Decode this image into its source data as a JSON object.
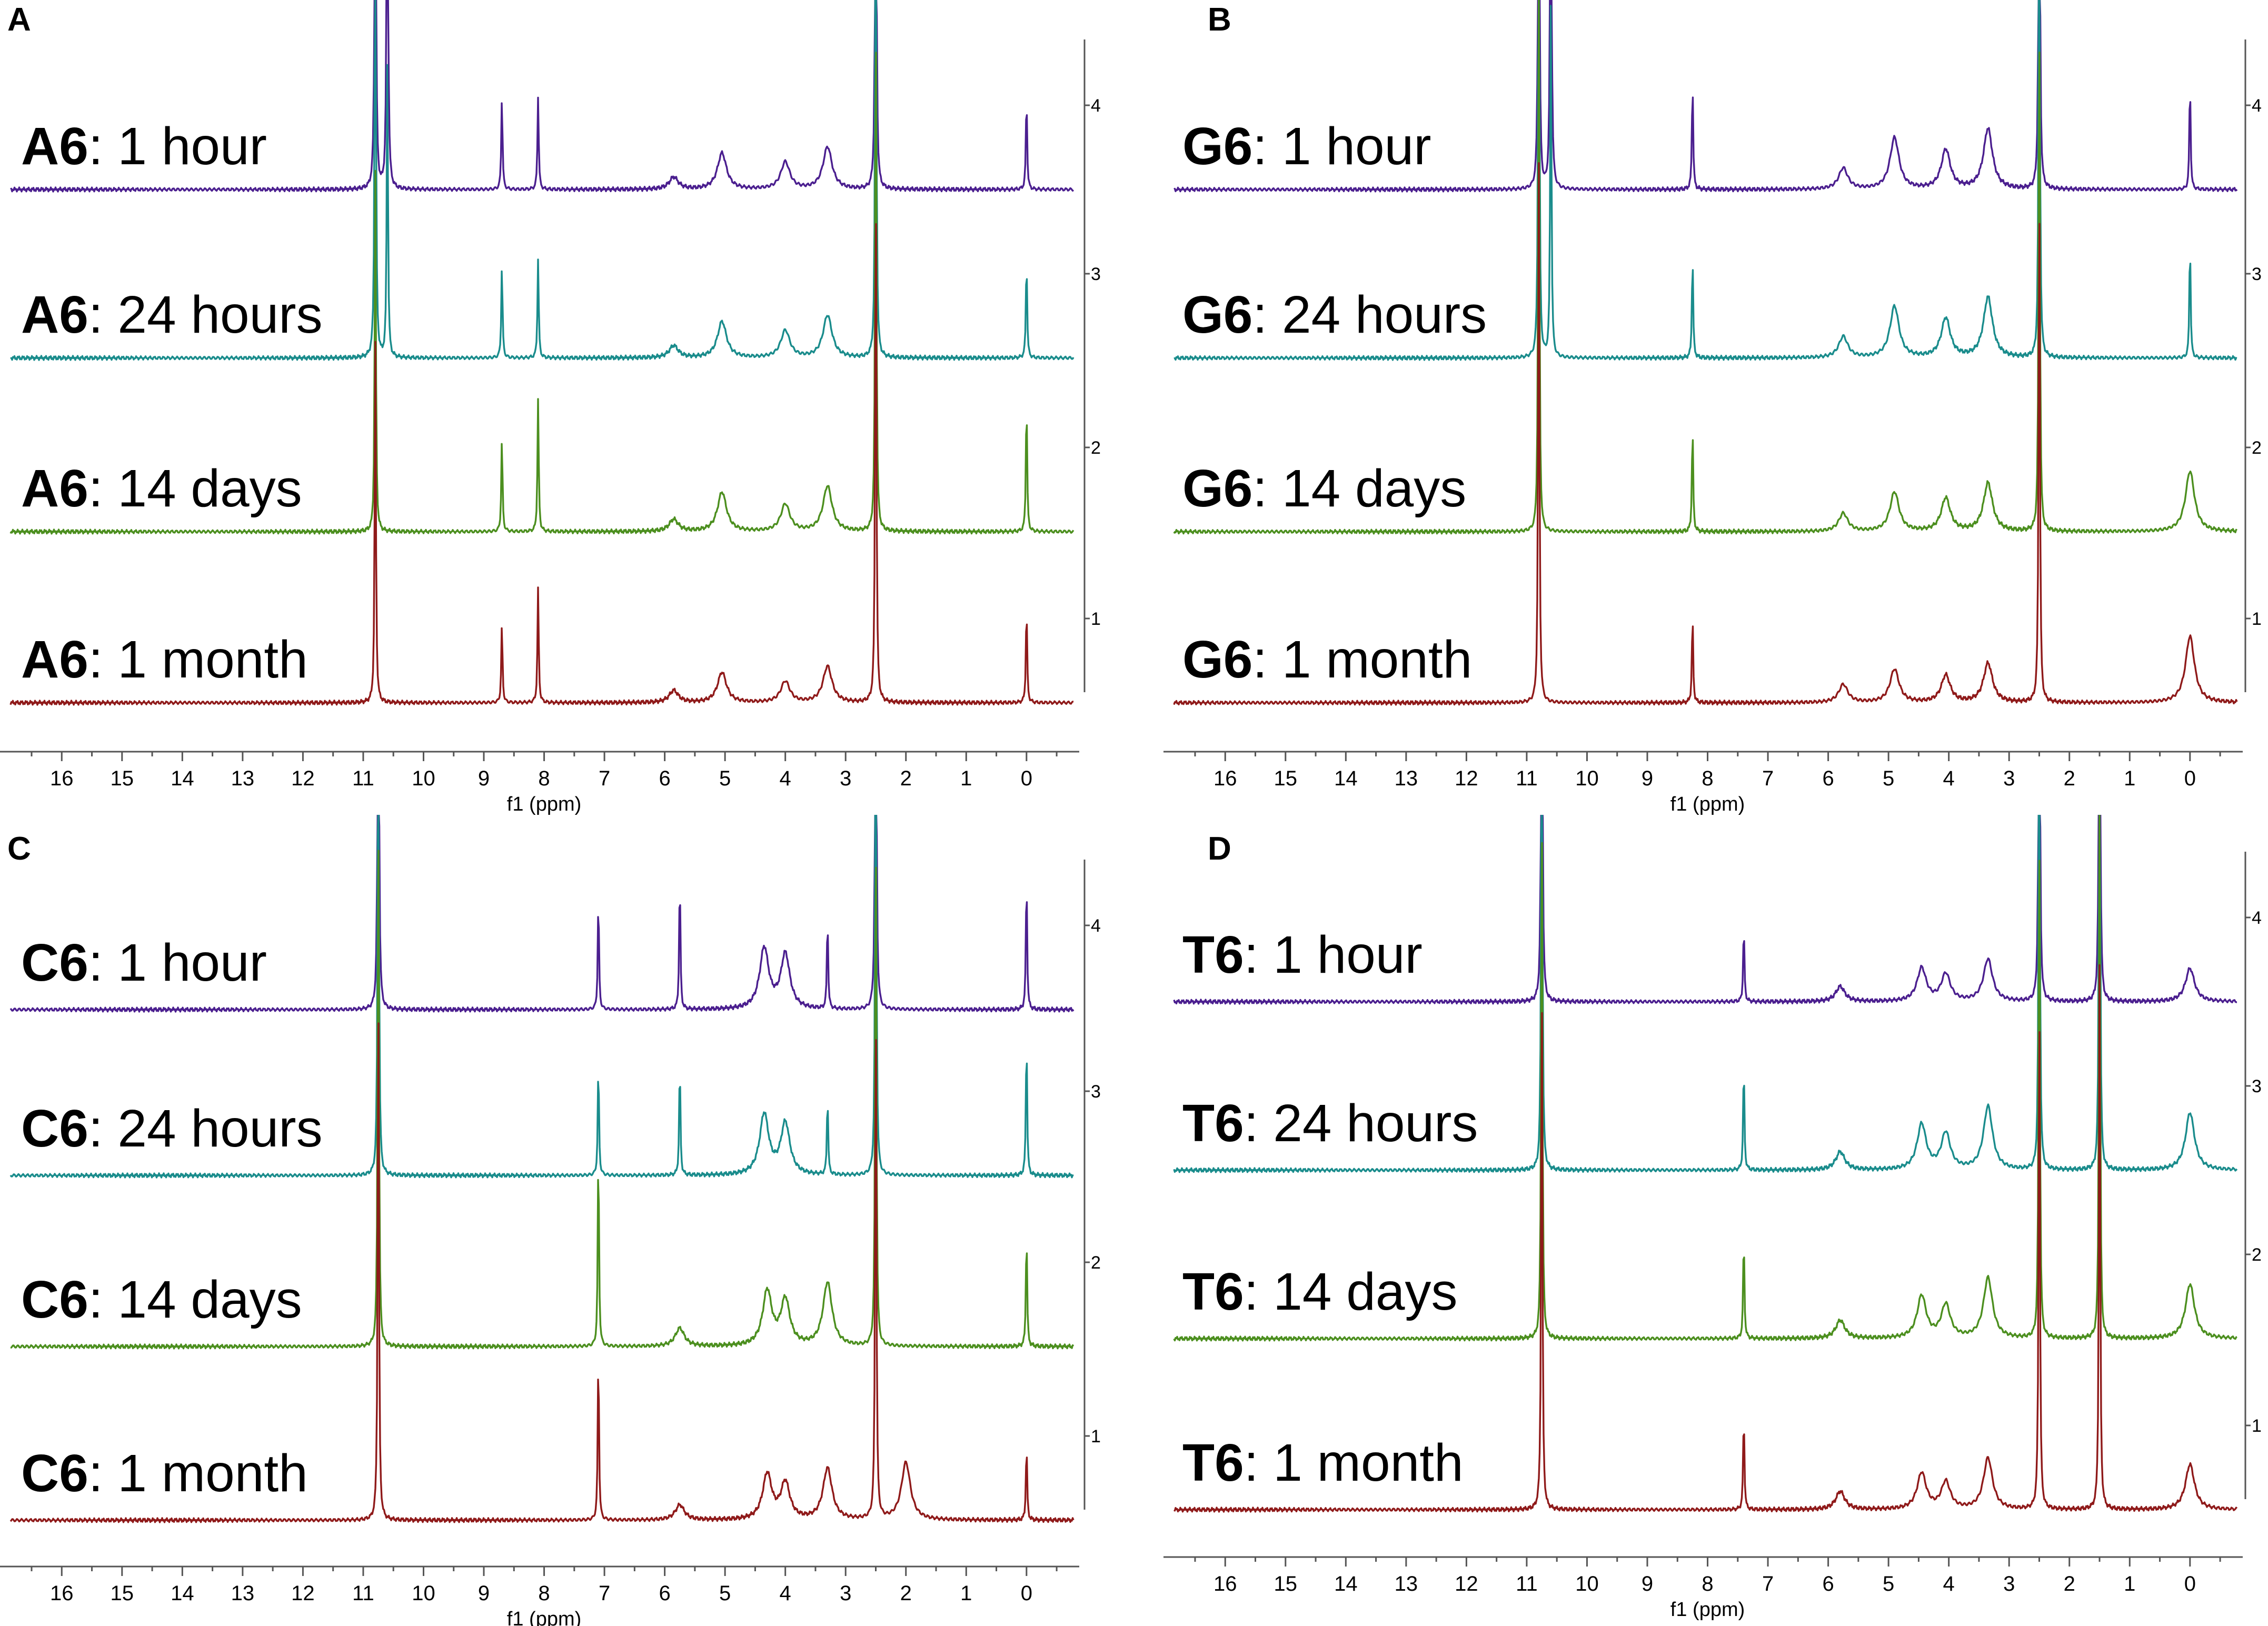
{
  "chart_data": [
    {
      "type": "line",
      "panel": "A",
      "compound": "A6",
      "xlabel": "f1 (ppm)",
      "xlim": [
        16.5,
        -0.7
      ],
      "x_ticks": [
        16,
        15,
        14,
        13,
        12,
        11,
        10,
        9,
        8,
        7,
        6,
        5,
        4,
        3,
        2,
        1,
        0
      ],
      "intensity_ticks": [
        1,
        2,
        3,
        4
      ],
      "series": [
        {
          "label_bold": "A6",
          "label_rest": ": 1 hour",
          "color": "#4b1f8f",
          "peaks": [
            {
              "ppm": 10.8,
              "h": 9
            },
            {
              "ppm": 10.6,
              "h": 9
            },
            {
              "ppm": 8.7,
              "h": 1.55
            },
            {
              "ppm": 8.1,
              "h": 1.55
            },
            {
              "ppm": 5.85,
              "h": 0.2
            },
            {
              "ppm": 5.05,
              "h": 0.6
            },
            {
              "ppm": 4.0,
              "h": 0.45
            },
            {
              "ppm": 3.3,
              "h": 0.7
            },
            {
              "ppm": 2.5,
              "h": 9
            },
            {
              "ppm": 0.0,
              "h": 1.55
            }
          ]
        },
        {
          "label_bold": "A6",
          "label_rest": ": 24 hours",
          "color": "#1a8c8c",
          "peaks": [
            {
              "ppm": 10.8,
              "h": 9
            },
            {
              "ppm": 10.6,
              "h": 5
            },
            {
              "ppm": 8.7,
              "h": 1.55
            },
            {
              "ppm": 8.1,
              "h": 1.65
            },
            {
              "ppm": 5.85,
              "h": 0.2
            },
            {
              "ppm": 5.05,
              "h": 0.6
            },
            {
              "ppm": 4.0,
              "h": 0.45
            },
            {
              "ppm": 3.3,
              "h": 0.7
            },
            {
              "ppm": 2.5,
              "h": 9
            },
            {
              "ppm": 0.0,
              "h": 1.65
            }
          ]
        },
        {
          "label_bold": "A6",
          "label_rest": ": 14 days",
          "color": "#4c8f1f",
          "peaks": [
            {
              "ppm": 10.8,
              "h": 6
            },
            {
              "ppm": 8.7,
              "h": 1.55
            },
            {
              "ppm": 8.1,
              "h": 2.2
            },
            {
              "ppm": 5.85,
              "h": 0.2
            },
            {
              "ppm": 5.05,
              "h": 0.65
            },
            {
              "ppm": 4.0,
              "h": 0.45
            },
            {
              "ppm": 3.3,
              "h": 0.75
            },
            {
              "ppm": 2.5,
              "h": 9
            },
            {
              "ppm": 0.0,
              "h": 2.2
            }
          ]
        },
        {
          "label_bold": "A6",
          "label_rest": ": 1 month",
          "color": "#8f1a1a",
          "peaks": [
            {
              "ppm": 10.8,
              "h": 6
            },
            {
              "ppm": 8.7,
              "h": 1.3
            },
            {
              "ppm": 8.1,
              "h": 1.9
            },
            {
              "ppm": 5.85,
              "h": 0.2
            },
            {
              "ppm": 5.05,
              "h": 0.5
            },
            {
              "ppm": 4.0,
              "h": 0.35
            },
            {
              "ppm": 3.3,
              "h": 0.6
            },
            {
              "ppm": 2.5,
              "h": 9
            },
            {
              "ppm": 0.0,
              "h": 1.6
            }
          ]
        }
      ]
    },
    {
      "type": "line",
      "panel": "B",
      "compound": "G6",
      "xlabel": "f1 (ppm)",
      "xlim": [
        16.5,
        -0.7
      ],
      "x_ticks": [
        16,
        15,
        14,
        13,
        12,
        11,
        10,
        9,
        8,
        7,
        6,
        5,
        4,
        3,
        2,
        1,
        0
      ],
      "intensity_ticks": [
        1,
        2,
        3,
        4
      ],
      "series": [
        {
          "label_bold": "G6",
          "label_rest": ": 1 hour",
          "color": "#4b1f8f",
          "peaks": [
            {
              "ppm": 10.8,
              "h": 9
            },
            {
              "ppm": 10.6,
              "h": 9
            },
            {
              "ppm": 8.25,
              "h": 1.8
            },
            {
              "ppm": 5.75,
              "h": 0.35
            },
            {
              "ppm": 4.9,
              "h": 0.85
            },
            {
              "ppm": 4.05,
              "h": 0.65
            },
            {
              "ppm": 3.35,
              "h": 1.0
            },
            {
              "ppm": 2.5,
              "h": 9
            },
            {
              "ppm": 0.0,
              "h": 1.8
            }
          ]
        },
        {
          "label_bold": "G6",
          "label_rest": ": 24 hours",
          "color": "#1a8c8c",
          "peaks": [
            {
              "ppm": 10.8,
              "h": 9
            },
            {
              "ppm": 10.6,
              "h": 6
            },
            {
              "ppm": 8.25,
              "h": 1.7
            },
            {
              "ppm": 5.75,
              "h": 0.35
            },
            {
              "ppm": 4.9,
              "h": 0.85
            },
            {
              "ppm": 4.05,
              "h": 0.65
            },
            {
              "ppm": 3.35,
              "h": 1.0
            },
            {
              "ppm": 2.5,
              "h": 9
            },
            {
              "ppm": 0.0,
              "h": 1.95
            }
          ]
        },
        {
          "label_bold": "G6",
          "label_rest": ": 14 days",
          "color": "#4c8f1f",
          "peaks": [
            {
              "ppm": 10.8,
              "h": 9
            },
            {
              "ppm": 8.25,
              "h": 1.75
            },
            {
              "ppm": 5.75,
              "h": 0.3
            },
            {
              "ppm": 4.9,
              "h": 0.65
            },
            {
              "ppm": 4.05,
              "h": 0.55
            },
            {
              "ppm": 3.35,
              "h": 0.8
            },
            {
              "ppm": 2.5,
              "h": 9
            },
            {
              "ppm": 0.0,
              "h": 1.0
            }
          ]
        },
        {
          "label_bold": "G6",
          "label_rest": ": 1 month",
          "color": "#8f1a1a",
          "peaks": [
            {
              "ppm": 10.8,
              "h": 9
            },
            {
              "ppm": 8.25,
              "h": 1.45
            },
            {
              "ppm": 5.75,
              "h": 0.3
            },
            {
              "ppm": 4.9,
              "h": 0.55
            },
            {
              "ppm": 4.05,
              "h": 0.45
            },
            {
              "ppm": 3.35,
              "h": 0.65
            },
            {
              "ppm": 2.5,
              "h": 9
            },
            {
              "ppm": 0.0,
              "h": 1.1
            }
          ]
        }
      ]
    },
    {
      "type": "line",
      "panel": "C",
      "compound": "C6",
      "xlabel": "f1 (ppm)",
      "xlim": [
        16.5,
        -0.7
      ],
      "x_ticks": [
        16,
        15,
        14,
        13,
        12,
        11,
        10,
        9,
        8,
        7,
        6,
        5,
        4,
        3,
        2,
        1,
        0
      ],
      "intensity_ticks": [
        1,
        2,
        3,
        4
      ],
      "series": [
        {
          "label_bold": "C6",
          "label_rest": ": 1 hour",
          "color": "#4b1f8f",
          "peaks": [
            {
              "ppm": 10.75,
              "h": 9
            },
            {
              "ppm": 7.1,
              "h": 1.85
            },
            {
              "ppm": 5.75,
              "h": 2.2
            },
            {
              "ppm": 4.35,
              "h": 1.0
            },
            {
              "ppm": 4.0,
              "h": 0.9
            },
            {
              "ppm": 3.3,
              "h": 1.5
            },
            {
              "ppm": 2.5,
              "h": 9
            },
            {
              "ppm": 0.0,
              "h": 2.2
            }
          ]
        },
        {
          "label_bold": "C6",
          "label_rest": ": 24 hours",
          "color": "#1a8c8c",
          "peaks": [
            {
              "ppm": 10.75,
              "h": 9
            },
            {
              "ppm": 7.1,
              "h": 1.85
            },
            {
              "ppm": 5.75,
              "h": 1.85
            },
            {
              "ppm": 4.35,
              "h": 1.0
            },
            {
              "ppm": 4.0,
              "h": 0.85
            },
            {
              "ppm": 3.3,
              "h": 1.3
            },
            {
              "ppm": 2.5,
              "h": 9
            },
            {
              "ppm": 0.0,
              "h": 2.3
            }
          ]
        },
        {
          "label_bold": "C6",
          "label_rest": ": 14 days",
          "color": "#4c8f1f",
          "peaks": [
            {
              "ppm": 10.75,
              "h": 9
            },
            {
              "ppm": 7.1,
              "h": 3.3
            },
            {
              "ppm": 5.75,
              "h": 0.3
            },
            {
              "ppm": 4.3,
              "h": 0.9
            },
            {
              "ppm": 4.0,
              "h": 0.75
            },
            {
              "ppm": 3.3,
              "h": 1.05
            },
            {
              "ppm": 2.5,
              "h": 9
            },
            {
              "ppm": 0.0,
              "h": 1.9
            }
          ]
        },
        {
          "label_bold": "C6",
          "label_rest": ": 1 month",
          "color": "#8f1a1a",
          "peaks": [
            {
              "ppm": 10.75,
              "h": 9
            },
            {
              "ppm": 7.1,
              "h": 2.8
            },
            {
              "ppm": 5.75,
              "h": 0.25
            },
            {
              "ppm": 4.3,
              "h": 0.75
            },
            {
              "ppm": 4.0,
              "h": 0.6
            },
            {
              "ppm": 3.3,
              "h": 0.85
            },
            {
              "ppm": 2.5,
              "h": 9
            },
            {
              "ppm": 2.0,
              "h": 0.95
            },
            {
              "ppm": 0.0,
              "h": 1.25
            }
          ]
        }
      ]
    },
    {
      "type": "line",
      "panel": "D",
      "compound": "T6",
      "xlabel": "f1 (ppm)",
      "xlim": [
        16.5,
        -0.7
      ],
      "x_ticks": [
        16,
        15,
        14,
        13,
        12,
        11,
        10,
        9,
        8,
        7,
        6,
        5,
        4,
        3,
        2,
        1,
        0
      ],
      "intensity_ticks": [
        1,
        2,
        3,
        4
      ],
      "series": [
        {
          "label_bold": "T6",
          "label_rest": ": 1 hour",
          "color": "#4b1f8f",
          "peaks": [
            {
              "ppm": 10.75,
              "h": 9
            },
            {
              "ppm": 7.4,
              "h": 1.25
            },
            {
              "ppm": 5.8,
              "h": 0.25
            },
            {
              "ppm": 4.45,
              "h": 0.55
            },
            {
              "ppm": 4.05,
              "h": 0.45
            },
            {
              "ppm": 3.35,
              "h": 0.7
            },
            {
              "ppm": 2.5,
              "h": 9
            },
            {
              "ppm": 1.5,
              "h": 9
            },
            {
              "ppm": 0.0,
              "h": 0.55
            }
          ]
        },
        {
          "label_bold": "T6",
          "label_rest": ": 24 hours",
          "color": "#1a8c8c",
          "peaks": [
            {
              "ppm": 10.75,
              "h": 9
            },
            {
              "ppm": 7.4,
              "h": 1.75
            },
            {
              "ppm": 5.8,
              "h": 0.3
            },
            {
              "ppm": 4.45,
              "h": 0.75
            },
            {
              "ppm": 4.05,
              "h": 0.6
            },
            {
              "ppm": 3.35,
              "h": 1.05
            },
            {
              "ppm": 2.5,
              "h": 9
            },
            {
              "ppm": 1.5,
              "h": 9
            },
            {
              "ppm": 0.0,
              "h": 0.95
            }
          ]
        },
        {
          "label_bold": "T6",
          "label_rest": ": 14 days",
          "color": "#4c8f1f",
          "peaks": [
            {
              "ppm": 10.75,
              "h": 9
            },
            {
              "ppm": 7.4,
              "h": 1.7
            },
            {
              "ppm": 5.8,
              "h": 0.3
            },
            {
              "ppm": 4.45,
              "h": 0.7
            },
            {
              "ppm": 4.05,
              "h": 0.55
            },
            {
              "ppm": 3.35,
              "h": 1.0
            },
            {
              "ppm": 2.5,
              "h": 9
            },
            {
              "ppm": 1.5,
              "h": 9
            },
            {
              "ppm": 0.0,
              "h": 0.9
            }
          ]
        },
        {
          "label_bold": "T6",
          "label_rest": ": 1 month",
          "color": "#8f1a1a",
          "peaks": [
            {
              "ppm": 10.75,
              "h": 9
            },
            {
              "ppm": 7.4,
              "h": 1.6
            },
            {
              "ppm": 5.8,
              "h": 0.3
            },
            {
              "ppm": 4.45,
              "h": 0.6
            },
            {
              "ppm": 4.05,
              "h": 0.45
            },
            {
              "ppm": 3.35,
              "h": 0.85
            },
            {
              "ppm": 2.5,
              "h": 9
            },
            {
              "ppm": 1.5,
              "h": 9
            },
            {
              "ppm": 0.0,
              "h": 0.75
            }
          ]
        }
      ]
    }
  ]
}
